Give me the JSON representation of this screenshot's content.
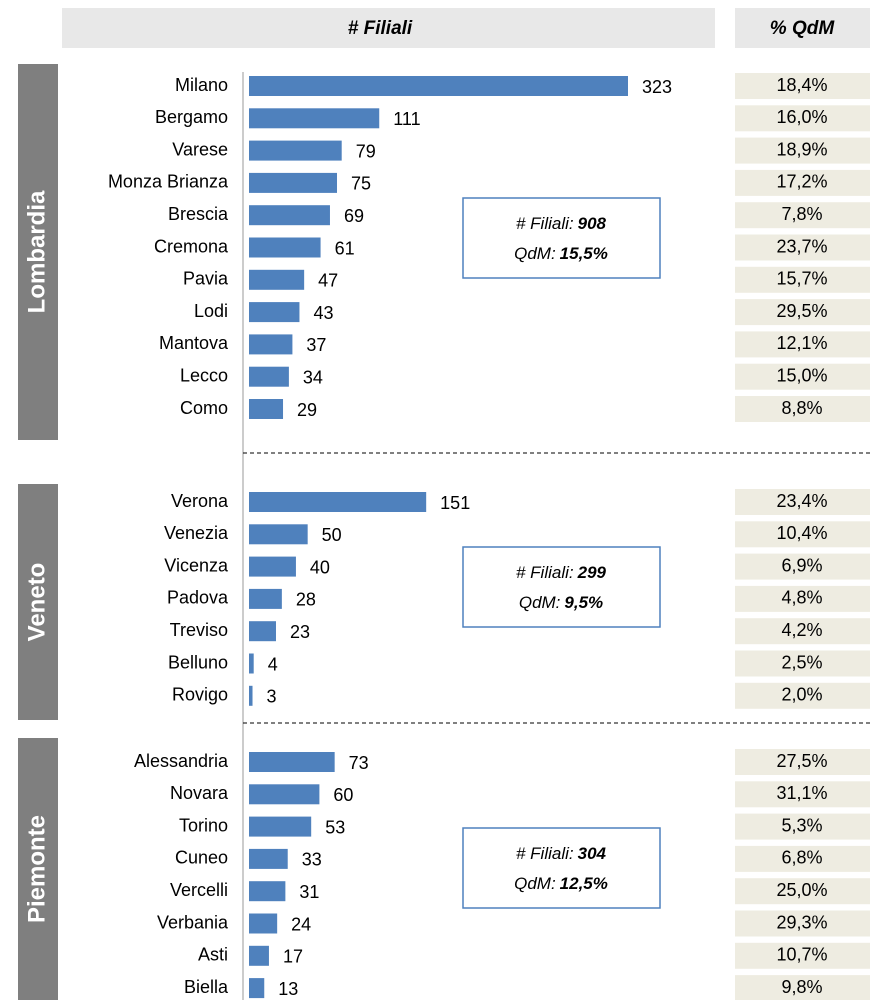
{
  "chart_data": {
    "type": "bar",
    "orientation": "horizontal",
    "value_header": "# Filiali",
    "qdm_header": "% QdM",
    "color": "#4f81bd",
    "groups": [
      {
        "name": "Lombardia",
        "categories": [
          "Milano",
          "Bergamo",
          "Varese",
          "Monza Brianza",
          "Brescia",
          "Cremona",
          "Pavia",
          "Lodi",
          "Mantova",
          "Lecco",
          "Como"
        ],
        "values": [
          323,
          111,
          79,
          75,
          69,
          61,
          47,
          43,
          37,
          34,
          29
        ],
        "qdm": [
          18.4,
          16.0,
          18.9,
          17.2,
          7.8,
          23.7,
          15.7,
          29.5,
          12.1,
          15.0,
          8.8
        ],
        "qdm_labels": [
          "18,4%",
          "16,0%",
          "18,9%",
          "17,2%",
          "7,8%",
          "23,7%",
          "15,7%",
          "29,5%",
          "12,1%",
          "15,0%",
          "8,8%"
        ],
        "summary": {
          "count_title": "# Filiali:",
          "count": 908,
          "qdm_title": "QdM:",
          "qdm": 15.5,
          "qdm_label": "15,5%"
        }
      },
      {
        "name": "Veneto",
        "categories": [
          "Verona",
          "Venezia",
          "Vicenza",
          "Padova",
          "Treviso",
          "Belluno",
          "Rovigo"
        ],
        "values": [
          151,
          50,
          40,
          28,
          23,
          4,
          3
        ],
        "qdm": [
          23.4,
          10.4,
          6.9,
          4.8,
          4.2,
          2.5,
          2.0
        ],
        "qdm_labels": [
          "23,4%",
          "10,4%",
          "6,9%",
          "4,8%",
          "4,2%",
          "2,5%",
          "2,0%"
        ],
        "summary": {
          "count_title": "# Filiali:",
          "count": 299,
          "qdm_title": "QdM:",
          "qdm": 9.5,
          "qdm_label": "9,5%"
        }
      },
      {
        "name": "Piemonte",
        "categories": [
          "Alessandria",
          "Novara",
          "Torino",
          "Cuneo",
          "Vercelli",
          "Verbania",
          "Asti",
          "Biella"
        ],
        "values": [
          73,
          60,
          53,
          33,
          31,
          24,
          17,
          13
        ],
        "qdm": [
          27.5,
          31.1,
          5.3,
          6.8,
          25.0,
          29.3,
          10.7,
          9.8
        ],
        "qdm_labels": [
          "27,5%",
          "31,1%",
          "5,3%",
          "6,8%",
          "25,0%",
          "29,3%",
          "10,7%",
          "9,8%"
        ],
        "summary": {
          "count_title": "# Filiali:",
          "count": 304,
          "qdm_title": "QdM:",
          "qdm": 12.5,
          "qdm_label": "12,5%"
        }
      }
    ]
  }
}
